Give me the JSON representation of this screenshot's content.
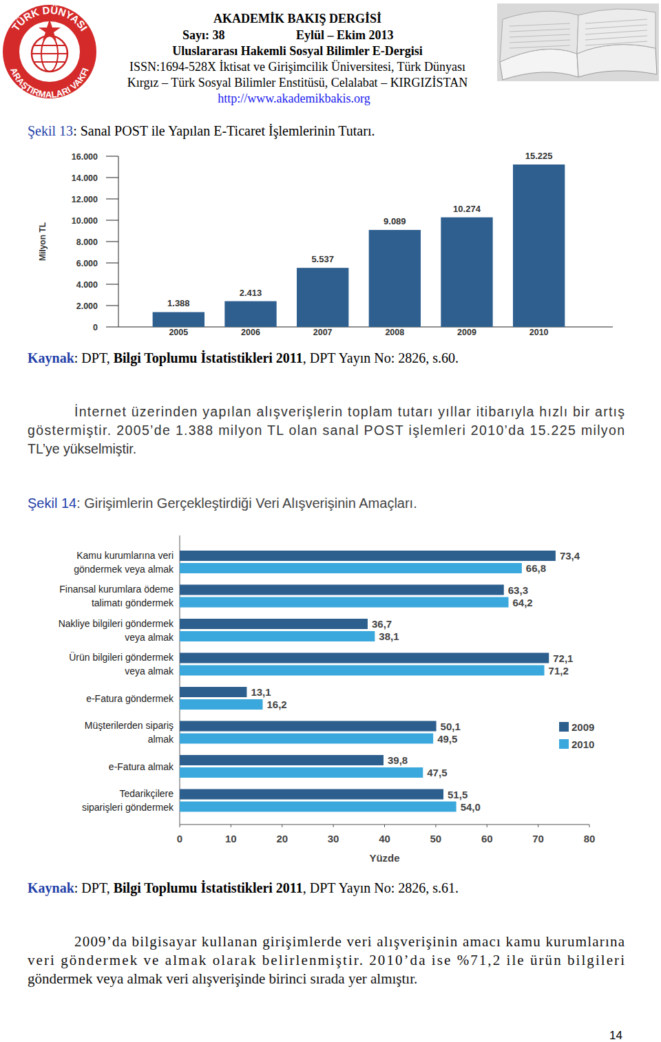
{
  "document": {
    "header": {
      "journal": "AKADEMİK BAKIŞ DERGİSİ",
      "issue": "Sayı: 38",
      "date": "Eylül – Ekim 2013",
      "subtitle": "Uluslararası Hakemli Sosyal Bilimler E-Dergisi",
      "issn_line": "ISSN:1694-528X İktisat ve Girişimcilik Üniversitesi, Türk Dünyası",
      "location_line": "Kırgız – Türk Sosyal Bilimler Enstitüsü, Celalabat – KIRGIZİSTAN",
      "url": "http://www.akademikbakis.org",
      "logo_top": "TÜRK DÜNYASI",
      "logo_bottom": "ARAŞTIRMALARI VAKFI"
    },
    "figure_13": {
      "label": "Şekil 13",
      "caption": ": Sanal POST ile Yapılan E-Ticaret İşlemlerinin Tutarı."
    },
    "source_13": {
      "label": "Kaynak",
      "text": ": DPT, ",
      "bold": "Bilgi Toplumu İstatistikleri 2011",
      "rest": ", DPT Yayın No: 2826, s.60."
    },
    "paragraph_1": {
      "lines": [
        "İnternet üzerinden yapılan alışverişlerin toplam tutarı yıllar itibarıyla hızlı bir artış",
        "göstermiştir. 2005’de 1.388 milyon TL olan sanal POST işlemleri 2010’da 15.225 milyon",
        "TL’ye yükselmiştir."
      ]
    },
    "figure_14": {
      "label": "Şekil 14",
      "caption": ": Girişimlerin Gerçekleştirdiği Veri Alışverişinin Amaçları."
    },
    "source_14": {
      "label": "Kaynak",
      "text": ": DPT, ",
      "bold": "Bilgi Toplumu İstatistikleri 2011",
      "rest": ", DPT Yayın No: 2826, s.61."
    },
    "paragraph_2": {
      "lines": [
        "2009’da bilgisayar kullanan girişimlerde veri alışverişinin amacı kamu kurumlarına",
        "veri göndermek ve almak olarak belirlenmiştir. 2010’da ise %71,2 ile ürün bilgileri",
        "göndermek veya almak veri alışverişinde birinci sırada yer almıştır."
      ]
    },
    "page_number": "14"
  },
  "chart_data": [
    {
      "type": "bar",
      "ylabel": "Milyon TL",
      "categories": [
        "2005",
        "2006",
        "2007",
        "2008",
        "2009",
        "2010"
      ],
      "values": [
        1388,
        2413,
        5537,
        9089,
        10274,
        15225
      ],
      "value_labels": [
        "1.388",
        "2.413",
        "5.537",
        "9.089",
        "10.274",
        "15.225"
      ],
      "color": "#2e5f8f",
      "ylim": [
        0,
        16000
      ],
      "yticks": [
        0,
        {
          "value": 2000,
          "label": "2.000"
        },
        {
          "value": 4000,
          "label": "4.000"
        },
        {
          "value": 6000,
          "label": "6.000"
        },
        {
          "value": 8000,
          "label": "8.000"
        },
        {
          "value": 10000,
          "label": "10.000"
        },
        {
          "value": 12000,
          "label": "12.000"
        },
        {
          "value": 14000,
          "label": "14.000"
        },
        {
          "value": 16000,
          "label": "16.000"
        }
      ],
      "grid": false,
      "data_labels": true
    },
    {
      "type": "bar",
      "orientation": "horizontal",
      "xlabel": "Yüzde",
      "categories": [
        "Kamu kurumlarına veri\ngöndermek veya almak",
        "Finansal kurumlara ödeme\ntalimatı göndermek",
        "Nakliye bilgileri göndermek\nveya almak",
        "Ürün bilgileri göndermek\nveya almak",
        "e-Fatura göndermek",
        "Müşterilerden sipariş\nalmak",
        "e-Fatura almak",
        "Tedarikçilere\nsiparişleri göndermek"
      ],
      "series": [
        {
          "name": "2009",
          "color": "#2d5f8e",
          "values": [
            73.4,
            63.3,
            36.7,
            72.1,
            13.1,
            50.1,
            39.8,
            51.5
          ],
          "value_labels": [
            "73,4",
            "63,3",
            "36,7",
            "72,1",
            "13,1",
            "50,1",
            "39,8",
            "51,5"
          ]
        },
        {
          "name": "2010",
          "color": "#3aa8dc",
          "values": [
            66.8,
            64.2,
            38.1,
            71.2,
            16.2,
            49.5,
            47.5,
            54.0
          ],
          "value_labels": [
            "66,8",
            "64,2",
            "38,1",
            "71,2",
            "16,2",
            "49,5",
            "47,5",
            "54,0"
          ]
        }
      ],
      "xlim": [
        0,
        80
      ],
      "xticks": [
        0,
        10,
        20,
        30,
        40,
        50,
        60,
        70,
        80
      ],
      "grid": false,
      "legend": "right",
      "data_labels": true
    }
  ]
}
